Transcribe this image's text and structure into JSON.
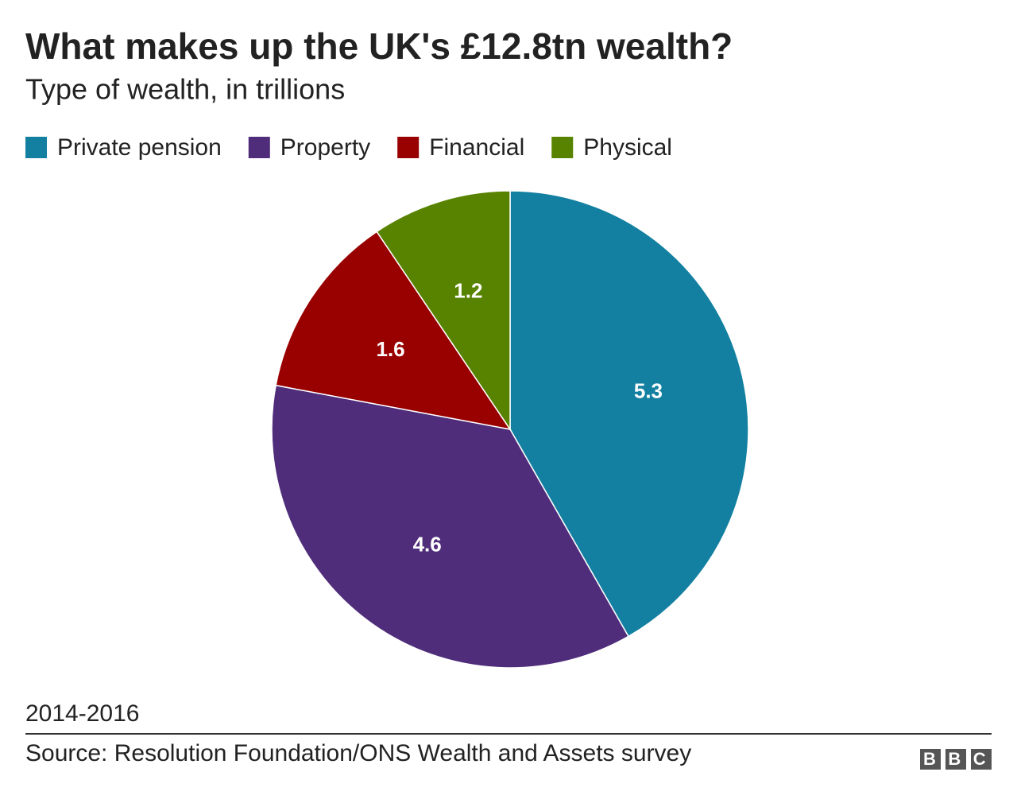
{
  "chart_data": {
    "type": "pie",
    "title": "What makes up the UK's £12.8tn wealth?",
    "subtitle": "Type of wealth, in trillions",
    "categories": [
      "Private pension",
      "Property",
      "Financial",
      "Physical"
    ],
    "values": [
      5.3,
      4.6,
      1.6,
      1.2
    ],
    "colors": [
      "#1380a1",
      "#4f2d7b",
      "#990000",
      "#588300"
    ],
    "note": "2014-2016",
    "source": "Source: Resolution Foundation/ONS Wealth and Assets survey",
    "logo": "BBC"
  }
}
